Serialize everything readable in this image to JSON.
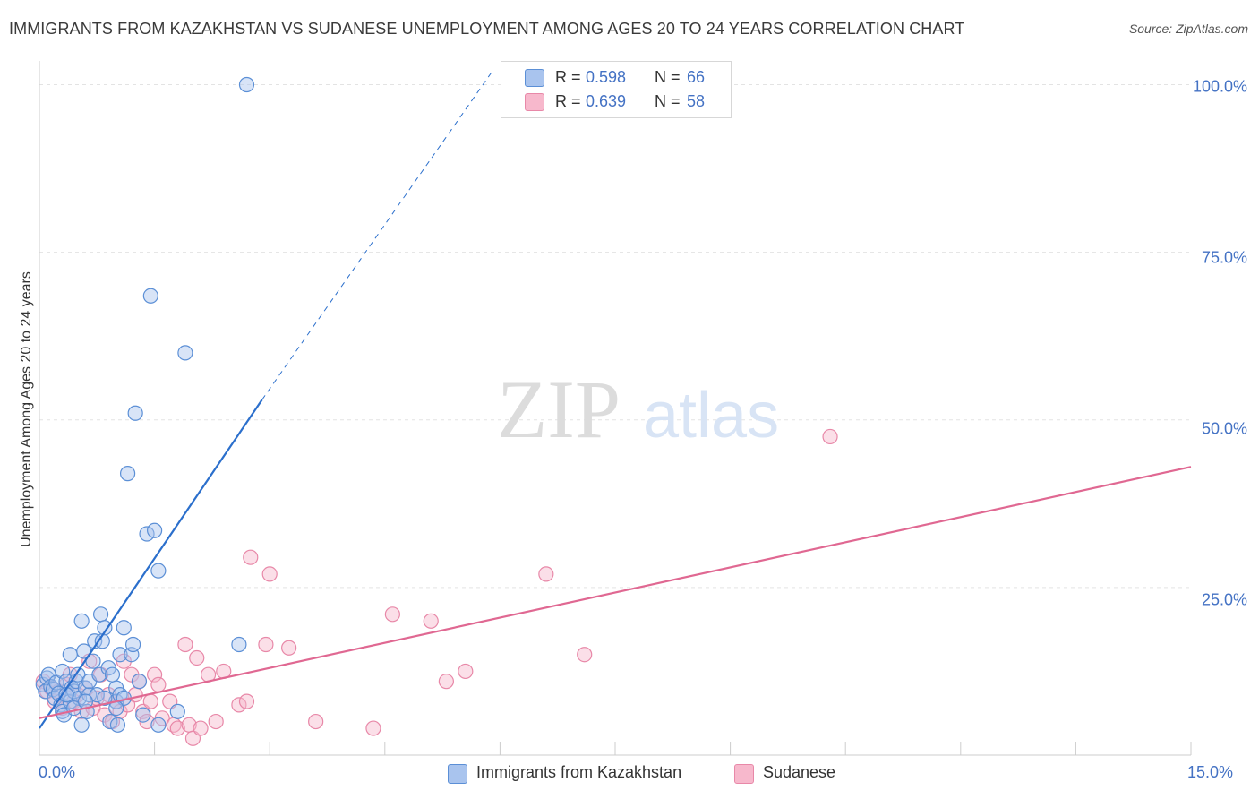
{
  "title": "IMMIGRANTS FROM KAZAKHSTAN VS SUDANESE UNEMPLOYMENT AMONG AGES 20 TO 24 YEARS CORRELATION CHART",
  "source": "Source: ZipAtlas.com",
  "watermark": {
    "zip": "ZIP",
    "atlas": "atlas"
  },
  "legend_top": {
    "rows": [
      {
        "r_label": "R =",
        "r_value": "0.598",
        "n_label": "N =",
        "n_value": "66"
      },
      {
        "r_label": "R =",
        "r_value": "0.639",
        "n_label": "N =",
        "n_value": "58"
      }
    ]
  },
  "colors": {
    "series1_fill": "#a9c4ee",
    "series1_stroke": "#5b8fd6",
    "series1_line": "#2b6fcc",
    "series2_fill": "#f7b8cc",
    "series2_stroke": "#e888a8",
    "series2_line": "#e06892",
    "axis_text": "#4472c4",
    "grid": "#e3e3e3"
  },
  "chart_data": {
    "type": "scatter",
    "title": "IMMIGRANTS FROM KAZAKHSTAN VS SUDANESE UNEMPLOYMENT AMONG AGES 20 TO 24 YEARS CORRELATION CHART",
    "xlabel": "",
    "ylabel": "Unemployment Among Ages 20 to 24 years",
    "xlim": [
      0,
      15
    ],
    "ylim": [
      0,
      100
    ],
    "x_tick_labels": [
      "0.0%",
      "15.0%"
    ],
    "y_tick_labels": [
      "100.0%",
      "75.0%",
      "50.0%",
      "25.0%"
    ],
    "y_ticks": [
      100,
      75,
      50,
      25
    ],
    "series": [
      {
        "name": "Immigrants from Kazakhstan",
        "r": 0.598,
        "n": 66,
        "trend": {
          "x0": 0,
          "y0": 4,
          "x1": 2.9,
          "y1": 53,
          "dash_to_x": 5.9,
          "dash_to_y": 102
        },
        "points": [
          [
            0.05,
            10.5
          ],
          [
            0.08,
            9.5
          ],
          [
            0.1,
            11.5
          ],
          [
            0.12,
            12
          ],
          [
            0.15,
            10.2
          ],
          [
            0.18,
            9.8
          ],
          [
            0.2,
            8.5
          ],
          [
            0.22,
            10.8
          ],
          [
            0.25,
            9.2
          ],
          [
            0.28,
            7.5
          ],
          [
            0.3,
            12.5
          ],
          [
            0.3,
            6.5
          ],
          [
            0.32,
            6
          ],
          [
            0.35,
            11
          ],
          [
            0.38,
            9
          ],
          [
            0.4,
            15
          ],
          [
            0.4,
            8
          ],
          [
            0.42,
            10
          ],
          [
            0.45,
            9.5
          ],
          [
            0.48,
            11
          ],
          [
            0.5,
            12
          ],
          [
            0.52,
            8.5
          ],
          [
            0.55,
            4.5
          ],
          [
            0.55,
            20
          ],
          [
            0.58,
            15.5
          ],
          [
            0.6,
            10
          ],
          [
            0.62,
            6.5
          ],
          [
            0.65,
            9
          ],
          [
            0.65,
            11
          ],
          [
            0.7,
            14
          ],
          [
            0.72,
            17
          ],
          [
            0.75,
            9
          ],
          [
            0.78,
            12
          ],
          [
            0.8,
            21
          ],
          [
            0.82,
            17
          ],
          [
            0.85,
            19
          ],
          [
            0.9,
            13
          ],
          [
            0.92,
            5
          ],
          [
            0.95,
            12
          ],
          [
            1.0,
            10
          ],
          [
            1.0,
            8
          ],
          [
            1.02,
            4.5
          ],
          [
            1.05,
            15
          ],
          [
            1.05,
            9
          ],
          [
            1.1,
            8.5
          ],
          [
            1.1,
            19
          ],
          [
            1.15,
            42
          ],
          [
            1.2,
            15
          ],
          [
            1.22,
            16.5
          ],
          [
            1.25,
            51
          ],
          [
            1.3,
            11
          ],
          [
            1.35,
            6
          ],
          [
            1.4,
            33
          ],
          [
            1.45,
            68.5
          ],
          [
            1.5,
            33.5
          ],
          [
            1.55,
            27.5
          ],
          [
            1.55,
            4.5
          ],
          [
            1.8,
            6.5
          ],
          [
            1.9,
            60
          ],
          [
            2.6,
            16.5
          ],
          [
            2.7,
            100
          ],
          [
            0.45,
            7
          ],
          [
            0.6,
            8
          ],
          [
            0.85,
            8.5
          ],
          [
            0.35,
            9
          ],
          [
            1.0,
            7
          ]
        ]
      },
      {
        "name": "Sudanese",
        "r": 0.639,
        "n": 58,
        "trend": {
          "x0": 0,
          "y0": 5.5,
          "x1": 15,
          "y1": 43
        },
        "points": [
          [
            0.05,
            11
          ],
          [
            0.1,
            9.5
          ],
          [
            0.15,
            10
          ],
          [
            0.2,
            8
          ],
          [
            0.25,
            9.5
          ],
          [
            0.3,
            7
          ],
          [
            0.35,
            10.5
          ],
          [
            0.4,
            12
          ],
          [
            0.45,
            8
          ],
          [
            0.5,
            9
          ],
          [
            0.55,
            6.5
          ],
          [
            0.6,
            10
          ],
          [
            0.65,
            14
          ],
          [
            0.7,
            7
          ],
          [
            0.75,
            8.5
          ],
          [
            0.8,
            12
          ],
          [
            0.85,
            6
          ],
          [
            0.9,
            9
          ],
          [
            0.95,
            5
          ],
          [
            1.0,
            8
          ],
          [
            1.05,
            6.5
          ],
          [
            1.1,
            14
          ],
          [
            1.15,
            7.5
          ],
          [
            1.2,
            12
          ],
          [
            1.25,
            9
          ],
          [
            1.3,
            11
          ],
          [
            1.35,
            6.5
          ],
          [
            1.4,
            5
          ],
          [
            1.45,
            8
          ],
          [
            1.5,
            12
          ],
          [
            1.55,
            10.5
          ],
          [
            1.6,
            5.5
          ],
          [
            1.7,
            8
          ],
          [
            1.75,
            4.5
          ],
          [
            1.8,
            4
          ],
          [
            1.9,
            16.5
          ],
          [
            1.95,
            4.5
          ],
          [
            2.0,
            2.5
          ],
          [
            2.05,
            14.5
          ],
          [
            2.1,
            4
          ],
          [
            2.2,
            12
          ],
          [
            2.3,
            5
          ],
          [
            2.4,
            12.5
          ],
          [
            2.6,
            7.5
          ],
          [
            2.7,
            8
          ],
          [
            2.75,
            29.5
          ],
          [
            2.95,
            16.5
          ],
          [
            3.0,
            27
          ],
          [
            3.25,
            16
          ],
          [
            3.6,
            5
          ],
          [
            4.35,
            4
          ],
          [
            4.6,
            21
          ],
          [
            5.1,
            20
          ],
          [
            5.3,
            11
          ],
          [
            5.55,
            12.5
          ],
          [
            6.6,
            27
          ],
          [
            7.1,
            15
          ],
          [
            10.3,
            47.5
          ]
        ]
      }
    ]
  },
  "legend_bottom": [
    "Immigrants from Kazakhstan",
    "Sudanese"
  ]
}
